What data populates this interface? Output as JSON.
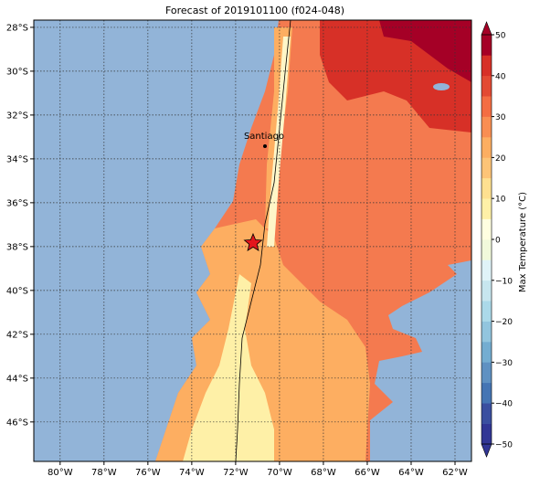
{
  "map": {
    "title": "Forecast of 2019101100 (f024-048)",
    "lonlim": [
      -81.2,
      -61.25
    ],
    "latlim": [
      -47.8,
      -27.67
    ],
    "lon_ticks": [
      {
        "value": -80,
        "label": "80°W"
      },
      {
        "value": -78,
        "label": "78°W"
      },
      {
        "value": -76,
        "label": "76°W"
      },
      {
        "value": -74,
        "label": "74°W"
      },
      {
        "value": -72,
        "label": "72°W"
      },
      {
        "value": -70,
        "label": "70°W"
      },
      {
        "value": -68,
        "label": "68°W"
      },
      {
        "value": -66,
        "label": "66°W"
      },
      {
        "value": -64,
        "label": "64°W"
      },
      {
        "value": -62,
        "label": "62°W"
      }
    ],
    "lat_ticks": [
      {
        "value": -28,
        "label": "28°S"
      },
      {
        "value": -30,
        "label": "30°S"
      },
      {
        "value": -32,
        "label": "32°S"
      },
      {
        "value": -34,
        "label": "34°S"
      },
      {
        "value": -36,
        "label": "36°S"
      },
      {
        "value": -38,
        "label": "38°S"
      },
      {
        "value": -40,
        "label": "40°S"
      },
      {
        "value": -42,
        "label": "42°S"
      },
      {
        "value": -44,
        "label": "44°S"
      },
      {
        "value": -46,
        "label": "46°S"
      }
    ],
    "place_label": "Santiago",
    "colorbar": {
      "label": "Max Temperature (°C)",
      "lim": [
        -50,
        50
      ],
      "ticks": [
        50,
        40,
        30,
        20,
        10,
        0,
        {
          "value": -10,
          "label": "−10"
        },
        {
          "value": -20,
          "label": "−20"
        },
        {
          "value": -30,
          "label": "−30"
        },
        {
          "value": -40,
          "label": "−40"
        },
        {
          "value": -50,
          "label": "−50"
        }
      ],
      "colors": [
        "#313695",
        "#3a4fa0",
        "#4575b4",
        "#5f91c2",
        "#74add1",
        "#92c5de",
        "#abd9e9",
        "#c7e6ef",
        "#e0f3f8",
        "#f1f9db",
        "#fffee0",
        "#fef0a7",
        "#fee090",
        "#fdc477",
        "#fdae61",
        "#f98e52",
        "#f46d43",
        "#e34a33",
        "#d73027",
        "#a50026"
      ]
    }
  }
}
